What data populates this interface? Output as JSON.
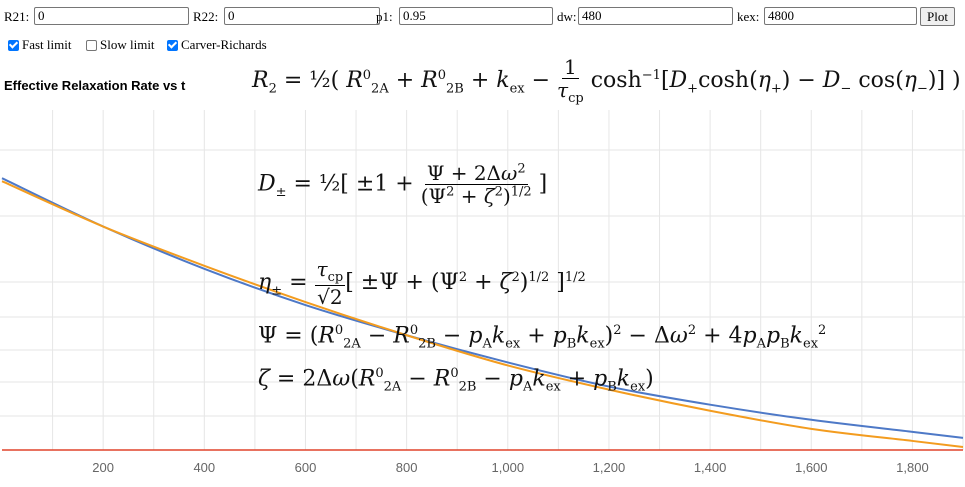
{
  "controls": {
    "r21": {
      "label": "R21:",
      "value": "0"
    },
    "r22": {
      "label": "R22:",
      "value": "0"
    },
    "p1": {
      "label": "p1:",
      "value": "0.95"
    },
    "dw": {
      "label": "dw:",
      "value": "480"
    },
    "kex": {
      "label": "kex:",
      "value": "4800"
    },
    "plot_label": "Plot"
  },
  "options": [
    {
      "label": "Fast limit",
      "checked": true
    },
    {
      "label": "Slow limit",
      "checked": false
    },
    {
      "label": "Carver-Richards",
      "checked": true
    }
  ],
  "chart_title": "Effective Relaxation Rate vs t",
  "equations": {
    "r2": "R₂ = ½( R⁰₂A + R⁰₂B + kₑₓ − (1/τcp) cosh⁻¹[D₊cosh(η₊) − D₋cos(η₋)] )",
    "dpm": "D± = ½[ ±1 + (Ψ + 2Δω²) / (Ψ² + ζ²)^1/2 ]",
    "eta": "η± = (τcp/√2) [ ±Ψ + (Ψ² + ζ²)^1/2 ]^1/2",
    "psi": "Ψ = (R⁰₂A − R⁰₂B − pAkex + pBkex)² − Δω² + 4pApBkex²",
    "zeta": "ζ = 2Δω(R⁰₂A − R⁰₂B − pAkex + pBkex)"
  },
  "chart_data": {
    "type": "line",
    "title": "",
    "xlabel": "",
    "ylabel": "",
    "xlim": [
      0,
      1900
    ],
    "x_ticks": [
      "200",
      "400",
      "600",
      "800",
      "1,000",
      "1,200",
      "1,400",
      "1,600",
      "1,800"
    ],
    "series": [
      {
        "color": "#4e79c7",
        "x": [
          0,
          200,
          400,
          600,
          800,
          1000,
          1200,
          1400,
          1600,
          1800,
          1900
        ],
        "y": [
          0.9,
          0.74,
          0.6,
          0.48,
          0.38,
          0.29,
          0.21,
          0.15,
          0.1,
          0.06,
          0.04
        ]
      },
      {
        "color": "#f39c1f",
        "x": [
          0,
          200,
          400,
          600,
          800,
          1000,
          1200,
          1400,
          1600,
          1800,
          1900
        ],
        "y": [
          0.89,
          0.74,
          0.61,
          0.49,
          0.38,
          0.28,
          0.2,
          0.13,
          0.07,
          0.03,
          0.01
        ]
      },
      {
        "color": "#e0442b",
        "x": [
          0,
          1900
        ],
        "y": [
          0,
          0
        ]
      }
    ]
  }
}
